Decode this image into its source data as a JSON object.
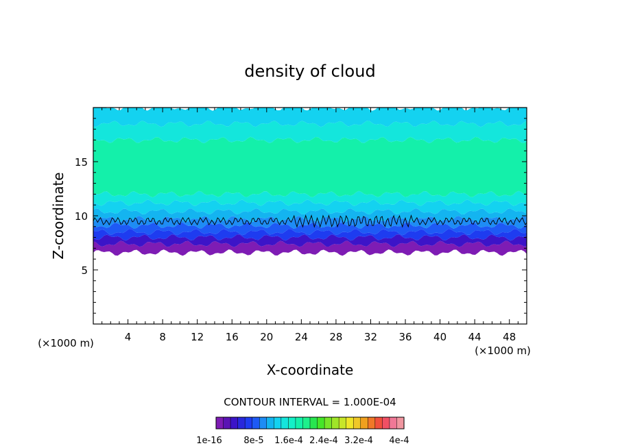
{
  "chart_data": {
    "type": "heatmap",
    "title": "density of cloud",
    "xlabel": "X-coordinate",
    "ylabel": "Z-coordinate",
    "x_unit": "(×1000 m)",
    "y_unit": "(×1000 m)",
    "xlim": [
      0,
      50
    ],
    "ylim": [
      0,
      20
    ],
    "x_ticks": [
      4,
      8,
      12,
      16,
      20,
      24,
      28,
      32,
      36,
      40,
      44,
      48
    ],
    "x_tick_labels": [
      "4",
      "8",
      "12",
      "16",
      "20",
      "24",
      "28",
      "32",
      "36",
      "40",
      "44",
      "48"
    ],
    "y_ticks": [
      5,
      10,
      15
    ],
    "y_tick_labels": [
      "5",
      "10",
      "15"
    ],
    "cloud_layer": {
      "base_km": 7.0,
      "top_km": 19.5,
      "core_bottom_km": 12.0,
      "core_top_km": 17.0,
      "contour_level_km": 9.5
    },
    "contour_interval_text": "CONTOUR INTERVAL = 1.000E-04",
    "colorbar": {
      "labels": [
        "1e-16",
        "8e-5",
        "1.6e-4",
        "2.4e-4",
        "3.2e-4",
        "4e-4"
      ],
      "colors": [
        "#7e1cb4",
        "#5a14b4",
        "#3c14c8",
        "#2828dc",
        "#1e3cf0",
        "#1e5af5",
        "#1e8cf5",
        "#14b4f0",
        "#14d2f0",
        "#14e6dc",
        "#14f0c8",
        "#14f0aa",
        "#1ef08c",
        "#28e650",
        "#46e628",
        "#78e628",
        "#a0e628",
        "#c8e628",
        "#f0e628",
        "#f0c828",
        "#f0a01e",
        "#f07828",
        "#f0503c",
        "#f05064",
        "#f07896",
        "#f096a0"
      ]
    }
  }
}
